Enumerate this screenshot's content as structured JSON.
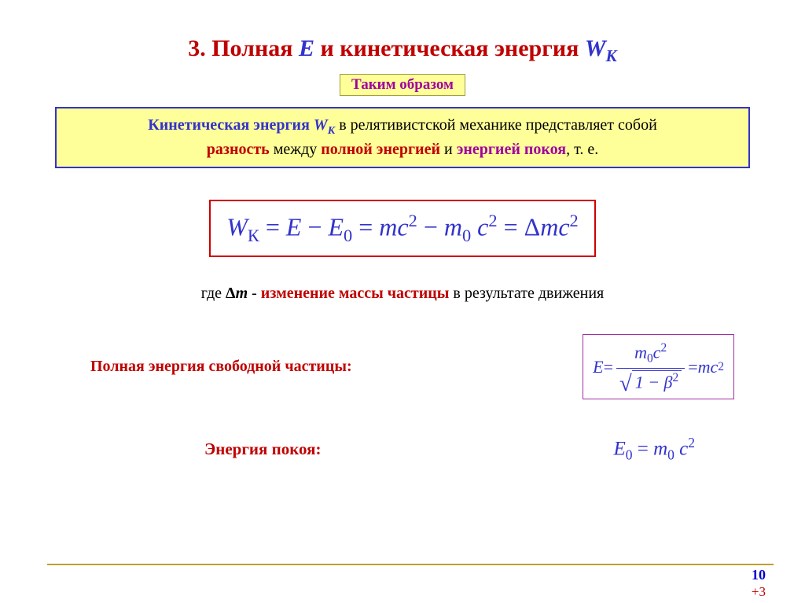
{
  "colors": {
    "red": "#c00000",
    "blue": "#3333cc",
    "darkblue": "#3333cc",
    "magenta": "#a000a0",
    "black": "#000000",
    "highlight_bg": "#ffff99",
    "formula_border": "#d00000",
    "defbox_border": "#3333cc",
    "ebox_border": "#a030a0",
    "hr": "#c0a030"
  },
  "title": {
    "num": "3. ",
    "part1": "Полная ",
    "E": "Е",
    "part2": " и кинетическая энергия ",
    "Wk_W": "W",
    "Wk_k": "К"
  },
  "subtitle": "Таким образом",
  "definition": {
    "l1_a": "Кинетическая энергия ",
    "l1_W": "W",
    "l1_k": "К",
    "l1_b": " в релятивистской механике представляет собой",
    "l2_a": "разность",
    "l2_b": " между ",
    "l2_c": "полной энергией",
    "l2_d": " и ",
    "l2_e": "энергией покоя",
    "l2_f": ", т. е."
  },
  "main_formula": {
    "Wk_W": "W",
    "Wk_k": "К",
    "eq1": " = ",
    "E": "E",
    "minus": " − ",
    "E0_E": "E",
    "E0_0": "0",
    "eq2": " = ",
    "mc2_m": "mc",
    "mc2_2": "2",
    "minus2": " − ",
    "m0_m": "m",
    "m0_0": "0",
    "c2_c": " c",
    "c2_2": "2",
    "eq3": " = ",
    "delta": "Δ",
    "dmc2_m": "mc",
    "dmc2_2": "2"
  },
  "where": {
    "pre": "где ",
    "delta": "Δ",
    "m": "m",
    "dash": " - ",
    "highlight": "изменение массы частицы",
    "post": " в результате движения"
  },
  "total_energy": {
    "label": "Полная энергия свободной частицы:",
    "E": "E",
    "eq": " = ",
    "num_m": "m",
    "num_0": "0",
    "num_c": "c",
    "num_2": "2",
    "den_1": "1 − β",
    "den_2": "2",
    "eq2": " = ",
    "mc": "mc",
    "sq": "2"
  },
  "rest_energy": {
    "label": "Энергия покоя:",
    "E": "E",
    "sub0": "0",
    "eq": " = ",
    "m": "m",
    "m0": "0",
    "c": " c",
    "c2": "2"
  },
  "footer": {
    "page": "10",
    "plus": "+3"
  }
}
